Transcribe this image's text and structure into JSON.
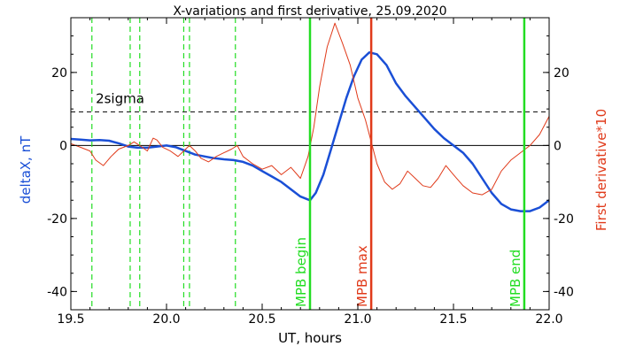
{
  "chart_data": {
    "type": "line",
    "title": "X-variations and first derivative, 25.09.2020",
    "xlabel": "UT, hours",
    "ylabel_left": "deltaX, nT",
    "ylabel_right": "First derivative*10",
    "xlim": [
      19.5,
      22.0
    ],
    "ylim": [
      -45,
      35
    ],
    "x_ticks": [
      "19.5",
      "20.0",
      "20.5",
      "21.0",
      "21.5",
      "22.0"
    ],
    "y_ticks_left": [
      "-40",
      "-20",
      "0",
      "20"
    ],
    "y_ticks_right": [
      "-40",
      "-20",
      "0",
      "20"
    ],
    "series": [
      {
        "color": "#1a4fd6",
        "axis": "left",
        "points": [
          [
            19.5,
            1.8
          ],
          [
            19.55,
            1.6
          ],
          [
            19.6,
            1.4
          ],
          [
            19.65,
            1.5
          ],
          [
            19.7,
            1.3
          ],
          [
            19.75,
            0.6
          ],
          [
            19.8,
            -0.3
          ],
          [
            19.85,
            -0.6
          ],
          [
            19.9,
            -0.6
          ],
          [
            19.95,
            -0.3
          ],
          [
            20.0,
            0.0
          ],
          [
            20.05,
            -0.5
          ],
          [
            20.1,
            -1.5
          ],
          [
            20.15,
            -2.5
          ],
          [
            20.2,
            -3.0
          ],
          [
            20.25,
            -3.5
          ],
          [
            20.3,
            -3.8
          ],
          [
            20.35,
            -4.0
          ],
          [
            20.4,
            -4.5
          ],
          [
            20.45,
            -5.5
          ],
          [
            20.5,
            -7.0
          ],
          [
            20.55,
            -8.5
          ],
          [
            20.6,
            -10.0
          ],
          [
            20.65,
            -12.0
          ],
          [
            20.7,
            -14.0
          ],
          [
            20.75,
            -15.0
          ],
          [
            20.78,
            -13.0
          ],
          [
            20.82,
            -8.0
          ],
          [
            20.86,
            -1.0
          ],
          [
            20.9,
            6.0
          ],
          [
            20.94,
            13.0
          ],
          [
            20.98,
            19.0
          ],
          [
            21.02,
            23.5
          ],
          [
            21.06,
            25.5
          ],
          [
            21.1,
            25.0
          ],
          [
            21.15,
            22.0
          ],
          [
            21.2,
            17.0
          ],
          [
            21.25,
            13.5
          ],
          [
            21.3,
            10.5
          ],
          [
            21.35,
            7.5
          ],
          [
            21.4,
            4.5
          ],
          [
            21.45,
            2.0
          ],
          [
            21.5,
            0.0
          ],
          [
            21.55,
            -2.0
          ],
          [
            21.6,
            -5.0
          ],
          [
            21.65,
            -9.0
          ],
          [
            21.7,
            -13.0
          ],
          [
            21.75,
            -16.0
          ],
          [
            21.8,
            -17.5
          ],
          [
            21.85,
            -18.0
          ],
          [
            21.9,
            -18.0
          ],
          [
            21.95,
            -17.0
          ],
          [
            22.0,
            -15.0
          ]
        ]
      },
      {
        "color": "#e03a1a",
        "axis": "right",
        "points": [
          [
            19.5,
            0.5
          ],
          [
            19.55,
            -0.5
          ],
          [
            19.6,
            -1.5
          ],
          [
            19.63,
            -4.0
          ],
          [
            19.67,
            -5.5
          ],
          [
            19.71,
            -3.0
          ],
          [
            19.75,
            -1.0
          ],
          [
            19.8,
            0.0
          ],
          [
            19.83,
            1.0
          ],
          [
            19.86,
            0.0
          ],
          [
            19.9,
            -1.5
          ],
          [
            19.93,
            2.0
          ],
          [
            19.95,
            1.5
          ],
          [
            19.98,
            -0.5
          ],
          [
            20.02,
            -1.5
          ],
          [
            20.06,
            -3.0
          ],
          [
            20.09,
            -1.5
          ],
          [
            20.12,
            0.0
          ],
          [
            20.15,
            -1.5
          ],
          [
            20.18,
            -3.5
          ],
          [
            20.22,
            -4.5
          ],
          [
            20.26,
            -3.0
          ],
          [
            20.3,
            -2.0
          ],
          [
            20.34,
            -1.0
          ],
          [
            20.37,
            0.0
          ],
          [
            20.4,
            -3.0
          ],
          [
            20.45,
            -5.0
          ],
          [
            20.5,
            -6.5
          ],
          [
            20.55,
            -5.5
          ],
          [
            20.6,
            -8.0
          ],
          [
            20.65,
            -6.0
          ],
          [
            20.7,
            -9.0
          ],
          [
            20.74,
            -3.0
          ],
          [
            20.77,
            5.0
          ],
          [
            20.8,
            16.0
          ],
          [
            20.84,
            27.0
          ],
          [
            20.88,
            33.5
          ],
          [
            20.92,
            28.0
          ],
          [
            20.96,
            22.0
          ],
          [
            21.0,
            13.0
          ],
          [
            21.04,
            7.0
          ],
          [
            21.07,
            1.0
          ],
          [
            21.1,
            -5.0
          ],
          [
            21.14,
            -10.0
          ],
          [
            21.18,
            -12.0
          ],
          [
            21.22,
            -10.5
          ],
          [
            21.26,
            -7.0
          ],
          [
            21.3,
            -9.0
          ],
          [
            21.34,
            -11.0
          ],
          [
            21.38,
            -11.5
          ],
          [
            21.42,
            -9.0
          ],
          [
            21.46,
            -5.5
          ],
          [
            21.5,
            -8.0
          ],
          [
            21.55,
            -11.0
          ],
          [
            21.6,
            -13.0
          ],
          [
            21.65,
            -13.5
          ],
          [
            21.7,
            -12.0
          ],
          [
            21.75,
            -7.0
          ],
          [
            21.8,
            -4.0
          ],
          [
            21.85,
            -2.0
          ],
          [
            21.9,
            0.0
          ],
          [
            21.95,
            3.0
          ],
          [
            22.0,
            8.0
          ]
        ]
      }
    ],
    "threshold": {
      "label": "2sigma",
      "value": 9.2
    },
    "minor_event_lines": [
      19.61,
      19.81,
      19.86,
      20.09,
      20.12,
      20.36
    ],
    "markers": [
      {
        "x": 20.75,
        "label": "MPB begin",
        "color": "#22dd22"
      },
      {
        "x": 21.07,
        "label": "MPB max",
        "color": "#e03a1a"
      },
      {
        "x": 21.87,
        "label": "MPB end",
        "color": "#22dd22"
      }
    ],
    "colors": {
      "left_axis": "#1a4fd6",
      "right_axis": "#e03a1a",
      "event_green": "#22dd22",
      "frame": "#000000"
    }
  }
}
